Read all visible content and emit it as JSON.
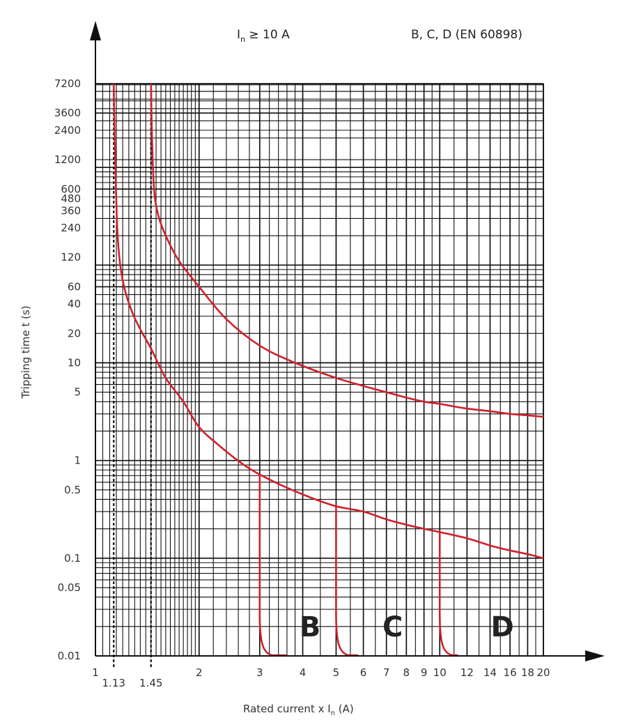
{
  "chart_data": {
    "type": "line",
    "title_current": "I",
    "title_current_sub": "n",
    "title_current_rest": " ≥ 10 A",
    "title_standard": "B, C, D (EN 60898)",
    "xlabel_main": "Rated current  x  I",
    "xlabel_sub": "n",
    "xlabel_unit": " (A)",
    "ylabel": "Tripping time  t (s)",
    "x_scale": "log",
    "y_scale": "log",
    "xlim": [
      1,
      20
    ],
    "ylim": [
      0.01,
      7200
    ],
    "grid": true,
    "colors": {
      "curve": "#d0202a",
      "grid": "#111111",
      "axis": "#111111"
    },
    "x_ticks": [
      "1",
      "1.13",
      "1.45",
      "2",
      "3",
      "4",
      "5",
      "6",
      "7",
      "8",
      "9",
      "10",
      "12",
      "14",
      "16",
      "18",
      "20"
    ],
    "y_ticks": [
      "7200",
      "3600",
      "2400",
      "1200",
      "600",
      "480",
      "360",
      "240",
      "120",
      "60",
      "40",
      "20",
      "10",
      "5",
      "1",
      "0.5",
      "0.1",
      "0.05",
      "0.01"
    ],
    "reference_lines_x": [
      1.13,
      1.45
    ],
    "series": [
      {
        "x": [
          1.13,
          1.14,
          1.16,
          1.2,
          1.27,
          1.35,
          1.45,
          1.6,
          1.8,
          2.0,
          2.3,
          2.7,
          3.0,
          3.5,
          4.2,
          5.0,
          6.0,
          7.0,
          8.0,
          9.0,
          10.0,
          12.0,
          14.0,
          16.0,
          18.0,
          20.0
        ],
        "y": [
          7200,
          1500,
          200,
          70,
          35,
          22,
          14,
          7,
          4,
          2.2,
          1.4,
          0.9,
          0.72,
          0.55,
          0.42,
          0.34,
          0.3,
          0.25,
          0.22,
          0.2,
          0.185,
          0.16,
          0.135,
          0.12,
          0.11,
          0.1
        ]
      },
      {
        "x": [
          1.45,
          1.46,
          1.48,
          1.52,
          1.6,
          1.75,
          2.0,
          2.4,
          3.0,
          3.8,
          5.0,
          6.0,
          7.0,
          8.0,
          9.0,
          10.0,
          12.0,
          14.0,
          16.0,
          18.0,
          20.0
        ],
        "y": [
          7200,
          2000,
          600,
          330,
          200,
          110,
          60,
          28,
          15,
          10,
          7,
          5.8,
          5,
          4.4,
          4,
          3.8,
          3.4,
          3.2,
          3,
          2.9,
          2.8
        ]
      }
    ],
    "drop_lines": [
      {
        "label": "B",
        "x": 3,
        "top": 0.72,
        "end_x": 3.6
      },
      {
        "label": "C",
        "x": 5,
        "top": 0.34,
        "end_x": 5.8
      },
      {
        "label": "D",
        "x": 10,
        "top": 0.185,
        "end_x": 11.3
      }
    ],
    "curve_labels": [
      {
        "text": "B",
        "x": 4.2,
        "y": 0.02
      },
      {
        "text": "C",
        "x": 7.3,
        "y": 0.02
      },
      {
        "text": "D",
        "x": 15.2,
        "y": 0.02
      }
    ]
  }
}
